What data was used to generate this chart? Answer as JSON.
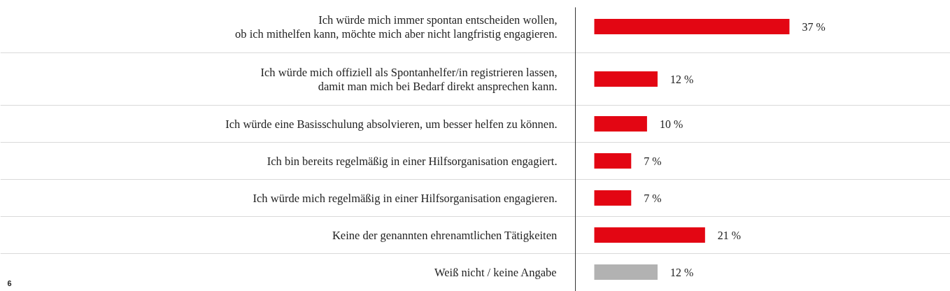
{
  "chart_data": {
    "type": "bar",
    "orientation": "horizontal",
    "categories": [
      "Ich würde mich immer spontan entscheiden wollen,\nob ich mithelfen kann, möchte mich aber nicht langfristig engagieren.",
      "Ich würde mich offiziell als Spontanhelfer/in registrieren lassen,\ndamit man mich bei Bedarf direkt ansprechen kann.",
      "Ich würde eine Basisschulung absolvieren, um besser helfen zu können.",
      "Ich bin bereits regelmäßig in einer Hilfsorganisation engagiert.",
      "Ich würde mich regelmäßig in einer Hilfsorganisation engagieren.",
      "Keine der genannten ehrenamtlichen Tätigkeiten",
      "Weiß nicht / keine Angabe"
    ],
    "values": [
      37,
      12,
      10,
      7,
      7,
      21,
      12
    ],
    "colors": [
      "#e30613",
      "#e30613",
      "#e30613",
      "#e30613",
      "#e30613",
      "#e30613",
      "#b2b2b2"
    ],
    "value_labels": [
      "37 %",
      "12 %",
      "10 %",
      "7 %",
      "7 %",
      "21 %",
      "12 %"
    ],
    "annotations": [
      "6"
    ]
  }
}
